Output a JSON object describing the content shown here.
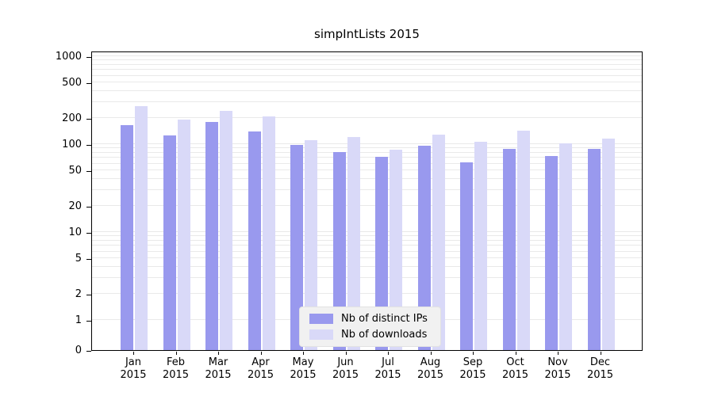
{
  "chart_data": {
    "type": "bar",
    "title": "simpIntLists 2015",
    "year": "2015",
    "categories": [
      "Jan",
      "Feb",
      "Mar",
      "Apr",
      "May",
      "Jun",
      "Jul",
      "Aug",
      "Sep",
      "Oct",
      "Nov",
      "Dec"
    ],
    "series": [
      {
        "name": "Nb of distinct IPs",
        "color": "#9999ee",
        "values": [
          165,
          125,
          178,
          140,
          97,
          82,
          72,
          95,
          62,
          88,
          74,
          88
        ]
      },
      {
        "name": "Nb of downloads",
        "color": "#d9d9f8",
        "values": [
          270,
          192,
          240,
          205,
          112,
          120,
          86,
          127,
          106,
          142,
          103,
          115
        ]
      }
    ],
    "yscale": "log",
    "yticks": [
      0,
      1,
      2,
      5,
      10,
      20,
      50,
      100,
      200,
      500,
      1000
    ],
    "ylim": [
      0,
      1000
    ],
    "xlabel": "",
    "ylabel": "",
    "grid": true,
    "legend_position": "bottom-center"
  }
}
